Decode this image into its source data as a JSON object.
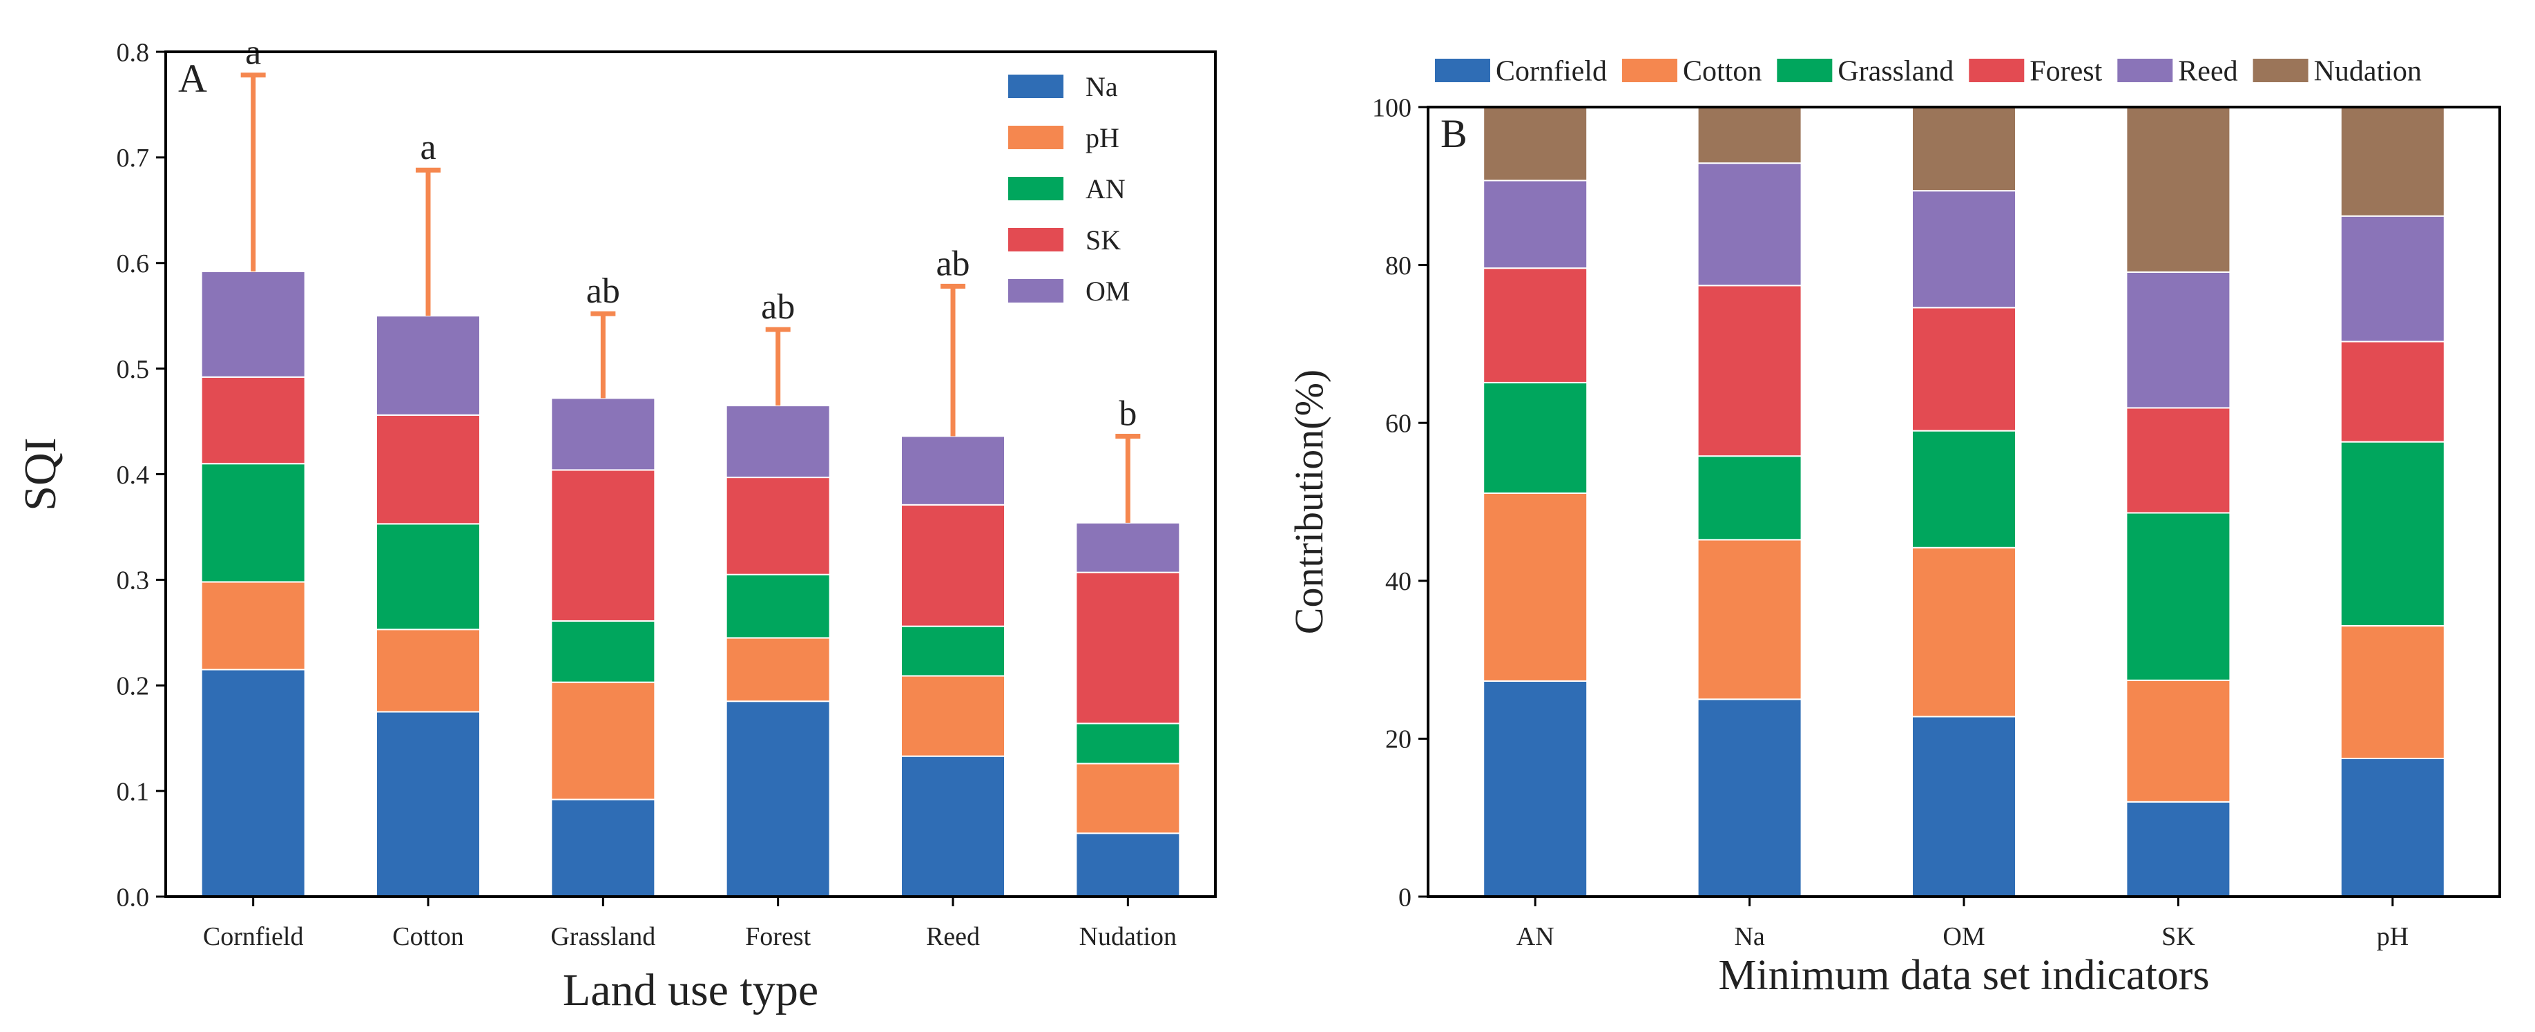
{
  "chart_data": [
    {
      "panel": "A",
      "type": "bar",
      "stacked": true,
      "title": "",
      "xlabel": "Land use type",
      "ylabel": "SQI",
      "ylim": [
        0,
        0.8
      ],
      "yticks": [
        "0.0",
        "0.1",
        "0.2",
        "0.3",
        "0.4",
        "0.5",
        "0.6",
        "0.7",
        "0.8"
      ],
      "categories": [
        "Cornfield",
        "Cotton",
        "Grassland",
        "Forest",
        "Reed",
        "Nudation"
      ],
      "series": [
        {
          "name": "Na",
          "color": "#2f6db5",
          "values": [
            0.215,
            0.175,
            0.092,
            0.185,
            0.133,
            0.06
          ]
        },
        {
          "name": "pH",
          "color": "#f5874f",
          "values": [
            0.083,
            0.078,
            0.111,
            0.06,
            0.076,
            0.066
          ]
        },
        {
          "name": "AN",
          "color": "#00a65d",
          "values": [
            0.112,
            0.1,
            0.058,
            0.06,
            0.047,
            0.038
          ]
        },
        {
          "name": "SK",
          "color": "#e34b52",
          "values": [
            0.082,
            0.103,
            0.143,
            0.092,
            0.115,
            0.143
          ]
        },
        {
          "name": "OM",
          "color": "#8a74b8",
          "values": [
            0.1,
            0.094,
            0.068,
            0.068,
            0.065,
            0.047
          ]
        }
      ],
      "error_top": [
        0.778,
        0.688,
        0.552,
        0.537,
        0.578,
        0.436
      ],
      "significance": [
        "a",
        "a",
        "ab",
        "ab",
        "ab",
        "b"
      ],
      "legend_position": "top-right"
    },
    {
      "panel": "B",
      "type": "bar",
      "stacked": true,
      "title": "",
      "xlabel": "Minimum data set indicators",
      "ylabel": "Contribution(%)",
      "ylim": [
        0,
        100
      ],
      "yticks": [
        "0",
        "20",
        "40",
        "60",
        "80",
        "100"
      ],
      "categories": [
        "AN",
        "Na",
        "OM",
        "SK",
        "pH"
      ],
      "series": [
        {
          "name": "Cornfield",
          "color": "#2f6db5",
          "values": [
            27.3,
            25.0,
            22.8,
            12.0,
            17.5
          ]
        },
        {
          "name": "Cotton",
          "color": "#f5874f",
          "values": [
            23.8,
            20.2,
            21.4,
            15.4,
            16.8
          ]
        },
        {
          "name": "Grassland",
          "color": "#00a65d",
          "values": [
            14.0,
            10.6,
            14.8,
            21.2,
            23.3
          ]
        },
        {
          "name": "Forest",
          "color": "#e34b52",
          "values": [
            14.5,
            21.6,
            15.6,
            13.3,
            12.7
          ]
        },
        {
          "name": "Reed",
          "color": "#8a74b8",
          "values": [
            11.1,
            15.5,
            14.8,
            17.2,
            15.9
          ]
        },
        {
          "name": "Nudation",
          "color": "#9b7559",
          "values": [
            9.3,
            7.1,
            10.6,
            20.9,
            13.8
          ]
        }
      ],
      "legend_position": "top"
    }
  ]
}
